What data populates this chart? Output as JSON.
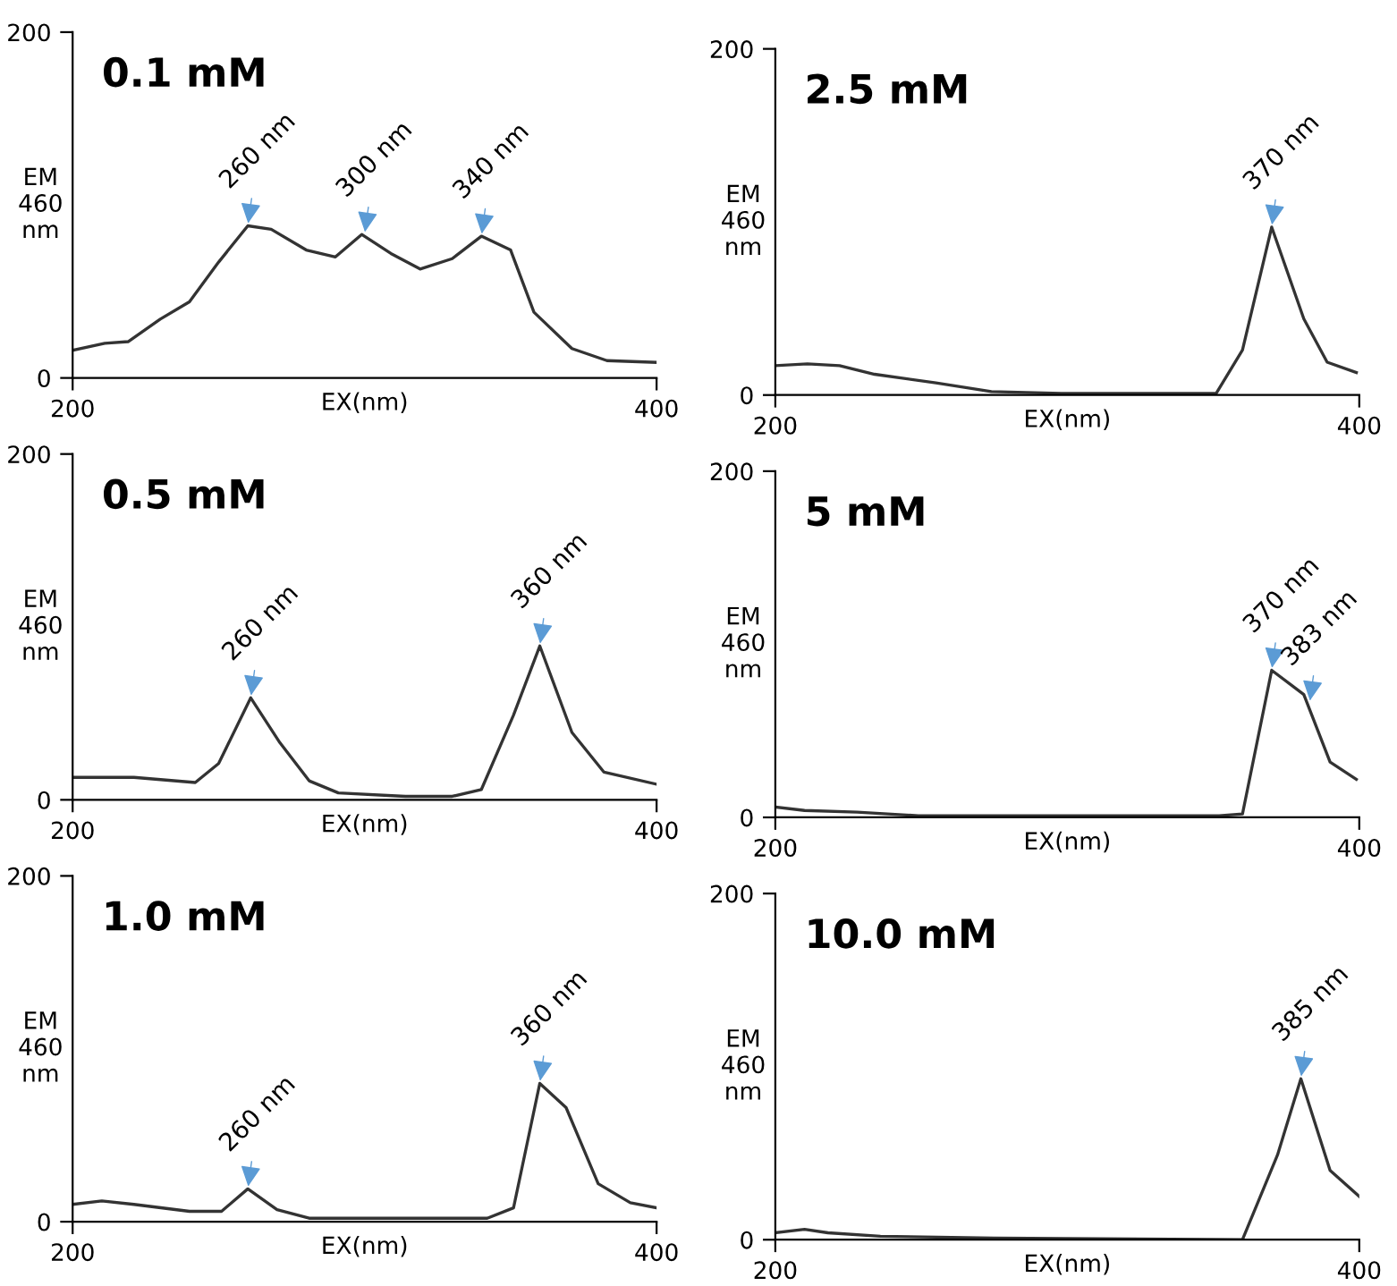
{
  "chart_data": [
    {
      "type": "line",
      "title": "0.1 mM",
      "xlabel": "EX(nm)",
      "ylabel": "EM\n460\nnm",
      "color": "#333333",
      "x": [
        200,
        211,
        219,
        230,
        240,
        250,
        260,
        268,
        280,
        290,
        299,
        309,
        319,
        330,
        340,
        350,
        358,
        371,
        383,
        400
      ],
      "values": [
        16,
        20,
        21,
        34,
        44,
        67,
        88,
        86,
        74,
        70,
        83,
        72,
        63,
        69,
        82,
        74,
        38,
        17,
        10,
        9
      ],
      "xlim": [
        200,
        400
      ],
      "ylim": [
        0,
        200
      ],
      "xticks": [
        200,
        400
      ],
      "yticks": [
        0,
        200
      ],
      "annotations": [
        {
          "text": "260 nm",
          "x": 260,
          "y": 88
        },
        {
          "text": "300 nm",
          "x": 300,
          "y": 83
        },
        {
          "text": "340 nm",
          "x": 340,
          "y": 82
        }
      ]
    },
    {
      "type": "line",
      "title": "0.5 mM",
      "xlabel": "EX(nm)",
      "ylabel": "EM\n460\nnm",
      "color": "#333333",
      "x": [
        200,
        221,
        242,
        250,
        261,
        271,
        281,
        291,
        314,
        330,
        340,
        351,
        360,
        371,
        382,
        400
      ],
      "values": [
        13,
        13,
        10,
        21,
        59,
        33,
        11,
        4,
        2,
        2,
        6,
        49,
        89,
        39,
        16,
        9
      ],
      "xlim": [
        200,
        400
      ],
      "ylim": [
        0,
        200
      ],
      "xticks": [
        200,
        400
      ],
      "yticks": [
        0,
        200
      ],
      "annotations": [
        {
          "text": "260 nm",
          "x": 261,
          "y": 59
        },
        {
          "text": "360 nm",
          "x": 360,
          "y": 89
        }
      ]
    },
    {
      "type": "line",
      "title": "1.0 mM",
      "xlabel": "EX(nm)",
      "ylabel": "EM\n460\nnm",
      "color": "#333333",
      "x": [
        200,
        210,
        221,
        240,
        251,
        260,
        270,
        281,
        342,
        351,
        360,
        369,
        380,
        391,
        400
      ],
      "values": [
        10,
        12,
        10,
        6,
        6,
        19,
        7,
        2,
        2,
        8,
        80,
        66,
        22,
        11,
        8
      ],
      "xlim": [
        200,
        400
      ],
      "ylim": [
        0,
        200
      ],
      "xticks": [
        200,
        400
      ],
      "yticks": [
        0,
        200
      ],
      "annotations": [
        {
          "text": "260 nm",
          "x": 260,
          "y": 19
        },
        {
          "text": "360 nm",
          "x": 360,
          "y": 80
        }
      ]
    },
    {
      "type": "line",
      "title": "2.5 mM",
      "xlabel": "EX(nm)",
      "ylabel": "EM\n460\nnm",
      "color": "#333333",
      "x": [
        200,
        211,
        222,
        234,
        255,
        274,
        298,
        351,
        360,
        370,
        381,
        389,
        399
      ],
      "values": [
        17,
        18,
        17,
        12,
        7,
        2,
        1,
        1,
        26,
        97,
        44,
        19,
        13
      ],
      "xlim": [
        200,
        400
      ],
      "ylim": [
        0,
        200
      ],
      "xticks": [
        200,
        400
      ],
      "yticks": [
        0,
        200
      ],
      "annotations": [
        {
          "text": "370 nm",
          "x": 370,
          "y": 97
        }
      ]
    },
    {
      "type": "line",
      "title": "5 mM",
      "xlabel": "EX(nm)",
      "ylabel": "EM\n460\nnm",
      "color": "#333333",
      "x": [
        200,
        210,
        228,
        249,
        352,
        360,
        370,
        381,
        390,
        399
      ],
      "values": [
        6,
        4,
        3,
        1,
        1,
        2,
        85,
        71,
        32,
        22
      ],
      "xlim": [
        200,
        400
      ],
      "ylim": [
        0,
        200
      ],
      "xticks": [
        200,
        400
      ],
      "yticks": [
        0,
        200
      ],
      "annotations": [
        {
          "text": "370 nm",
          "x": 370,
          "y": 85
        },
        {
          "text": "383 nm",
          "x": 383,
          "y": 66
        }
      ]
    },
    {
      "type": "line",
      "title": "10.0 mM",
      "xlabel": "EX(nm)",
      "ylabel": "EM\n460\nnm",
      "color": "#333333",
      "x": [
        200,
        210,
        218,
        236,
        275,
        360,
        372,
        380,
        390,
        400
      ],
      "values": [
        4,
        6,
        4,
        2,
        1,
        0,
        49,
        93,
        40,
        25
      ],
      "xlim": [
        200,
        400
      ],
      "ylim": [
        0,
        200
      ],
      "xticks": [
        200,
        400
      ],
      "yticks": [
        0,
        200
      ],
      "annotations": [
        {
          "text": "385 nm",
          "x": 380,
          "y": 93
        }
      ]
    }
  ]
}
